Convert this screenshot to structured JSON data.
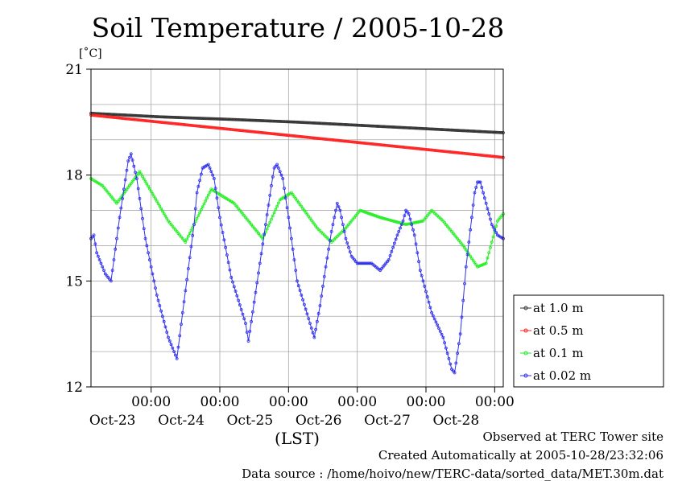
{
  "chart_data": {
    "type": "line",
    "title": "Soil Temperature / 2005-10-28",
    "ylabel": "[˚C]",
    "xlabel": "(LST)",
    "ylim": [
      12,
      21
    ],
    "yticks": [
      12,
      15,
      18,
      21
    ],
    "xlim": [
      0,
      144
    ],
    "xticks": [
      {
        "x": 21,
        "time": "00:00",
        "date": "Oct-23"
      },
      {
        "x": 45,
        "time": "00:00",
        "date": "Oct-24"
      },
      {
        "x": 69,
        "time": "00:00",
        "date": "Oct-25"
      },
      {
        "x": 93,
        "time": "00:00",
        "date": "Oct-26"
      },
      {
        "x": 117,
        "time": "00:00",
        "date": "Oct-27"
      },
      {
        "x": 141,
        "time": "00:00",
        "date": "Oct-28"
      }
    ],
    "grid": true,
    "legend_position": "right",
    "series": [
      {
        "name": "at 1.0 m",
        "color": "#333333",
        "points": [
          [
            0,
            19.75
          ],
          [
            24,
            19.65
          ],
          [
            48,
            19.58
          ],
          [
            72,
            19.5
          ],
          [
            96,
            19.4
          ],
          [
            120,
            19.3
          ],
          [
            144,
            19.2
          ]
        ]
      },
      {
        "name": "at 0.5 m",
        "color": "#ff2020",
        "points": [
          [
            0,
            19.7
          ],
          [
            24,
            19.5
          ],
          [
            48,
            19.3
          ],
          [
            72,
            19.1
          ],
          [
            96,
            18.9
          ],
          [
            120,
            18.7
          ],
          [
            144,
            18.5
          ]
        ]
      },
      {
        "name": "at 0.1 m",
        "color": "#22ee22",
        "points": [
          [
            0,
            17.9
          ],
          [
            4,
            17.7
          ],
          [
            9,
            17.2
          ],
          [
            17,
            18.1
          ],
          [
            27,
            16.7
          ],
          [
            33,
            16.1
          ],
          [
            42,
            17.6
          ],
          [
            50,
            17.2
          ],
          [
            57,
            16.5
          ],
          [
            60,
            16.2
          ],
          [
            66,
            17.3
          ],
          [
            70,
            17.5
          ],
          [
            79,
            16.5
          ],
          [
            84,
            16.1
          ],
          [
            89,
            16.5
          ],
          [
            94,
            17.0
          ],
          [
            101,
            16.8
          ],
          [
            110,
            16.6
          ],
          [
            116,
            16.7
          ],
          [
            119,
            17.0
          ],
          [
            123,
            16.7
          ],
          [
            130,
            16.0
          ],
          [
            135,
            15.4
          ],
          [
            138,
            15.5
          ],
          [
            142,
            16.7
          ],
          [
            144,
            16.9
          ]
        ]
      },
      {
        "name": "at 0.02 m",
        "color": "#3030ee",
        "points": [
          [
            0,
            16.2
          ],
          [
            1,
            16.3
          ],
          [
            2,
            15.8
          ],
          [
            5,
            15.2
          ],
          [
            7,
            15.0
          ],
          [
            10,
            16.8
          ],
          [
            13,
            18.4
          ],
          [
            14,
            18.6
          ],
          [
            16,
            17.9
          ],
          [
            19,
            16.2
          ],
          [
            23,
            14.6
          ],
          [
            27,
            13.4
          ],
          [
            29,
            13.0
          ],
          [
            30,
            12.8
          ],
          [
            32,
            14.1
          ],
          [
            36,
            16.6
          ],
          [
            37,
            17.5
          ],
          [
            39,
            18.2
          ],
          [
            41,
            18.3
          ],
          [
            43,
            17.9
          ],
          [
            45,
            16.8
          ],
          [
            49,
            15.1
          ],
          [
            54,
            13.8
          ],
          [
            55,
            13.3
          ],
          [
            57,
            14.4
          ],
          [
            61,
            16.6
          ],
          [
            63,
            17.7
          ],
          [
            64,
            18.2
          ],
          [
            65,
            18.3
          ],
          [
            67,
            17.9
          ],
          [
            69,
            16.8
          ],
          [
            72,
            15.0
          ],
          [
            75,
            14.2
          ],
          [
            78,
            13.4
          ],
          [
            80,
            14.3
          ],
          [
            82,
            15.4
          ],
          [
            84,
            16.4
          ],
          [
            86,
            17.2
          ],
          [
            87,
            17.0
          ],
          [
            89,
            16.2
          ],
          [
            91,
            15.7
          ],
          [
            93,
            15.5
          ],
          [
            98,
            15.5
          ],
          [
            101,
            15.3
          ],
          [
            104,
            15.6
          ],
          [
            107,
            16.3
          ],
          [
            109,
            16.7
          ],
          [
            110,
            17.0
          ],
          [
            111,
            16.9
          ],
          [
            113,
            16.3
          ],
          [
            115,
            15.3
          ],
          [
            119,
            14.1
          ],
          [
            123,
            13.4
          ],
          [
            126,
            12.5
          ],
          [
            127,
            12.4
          ],
          [
            129,
            13.5
          ],
          [
            131,
            15.4
          ],
          [
            133,
            16.8
          ],
          [
            134,
            17.5
          ],
          [
            135,
            17.8
          ],
          [
            136,
            17.8
          ],
          [
            138,
            17.2
          ],
          [
            140,
            16.6
          ],
          [
            142,
            16.3
          ],
          [
            144,
            16.2
          ]
        ]
      }
    ]
  },
  "footer": {
    "line1": "Observed at TERC Tower site",
    "line2": "Created Automatically at 2005-10-28/23:32:06",
    "line3": "Data source : /home/hoivo/new/TERC-data/sorted_data/MET.30m.dat"
  }
}
